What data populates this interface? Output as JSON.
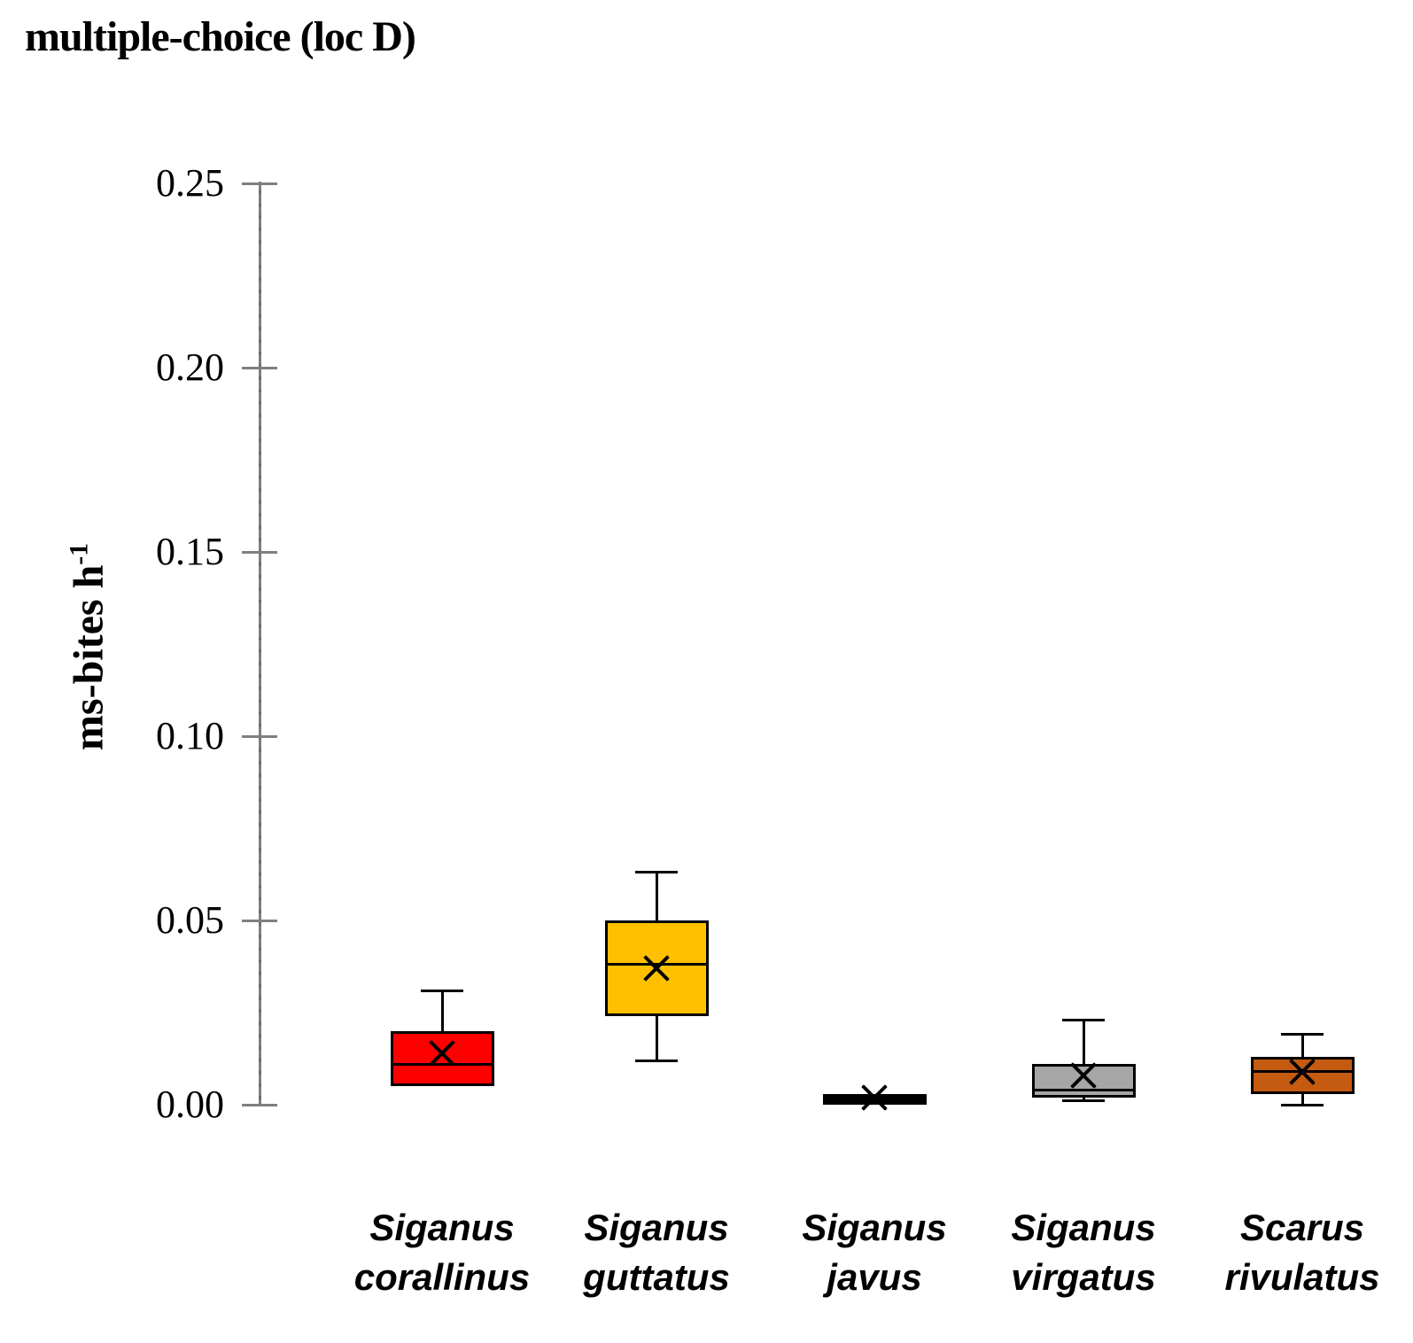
{
  "title": "multiple-choice (loc D)",
  "ylabel_parts": {
    "base": "ms-bites h",
    "superscript": "-1"
  },
  "chart_data": {
    "type": "boxplot",
    "title": "multiple-choice (loc D)",
    "ylabel": "ms-bites h^-1",
    "ylim": [
      0,
      0.25
    ],
    "yticks": [
      0.0,
      0.05,
      0.1,
      0.15,
      0.2,
      0.25
    ],
    "ytick_labels": [
      "0.00",
      "0.05",
      "0.10",
      "0.15",
      "0.20",
      "0.25"
    ],
    "grid": false,
    "legend": false,
    "axis_color": "#7F7F7F",
    "categories": [
      "Siganus corallinus",
      "Siganus guttatus",
      "Siganus javus",
      "Siganus virgatus",
      "Scarus rivulatus"
    ],
    "series": [
      {
        "name": "Siganus corallinus",
        "fill": "#FF0000",
        "whisker_high": 0.031,
        "q3": 0.02,
        "median": 0.011,
        "q1": 0.005,
        "whisker_low": null,
        "mean": 0.014
      },
      {
        "name": "Siganus guttatus",
        "fill": "#FFC000",
        "whisker_high": 0.063,
        "q3": 0.05,
        "median": 0.038,
        "q1": 0.024,
        "whisker_low": 0.012,
        "mean": 0.037
      },
      {
        "name": "Siganus javus",
        "fill": "#000000",
        "whisker_high": null,
        "q3": 0.003,
        "median": 0.002,
        "q1": 0.0,
        "whisker_low": null,
        "mean": 0.002
      },
      {
        "name": "Siganus virgatus",
        "fill": "#A6A6A6",
        "whisker_high": 0.023,
        "q3": 0.011,
        "median": 0.004,
        "q1": 0.002,
        "whisker_low": 0.001,
        "mean": 0.008
      },
      {
        "name": "Scarus rivulatus",
        "fill": "#C55A11",
        "whisker_high": 0.019,
        "q3": 0.013,
        "median": 0.009,
        "q1": 0.003,
        "whisker_low": 0.0,
        "mean": 0.009
      }
    ]
  }
}
